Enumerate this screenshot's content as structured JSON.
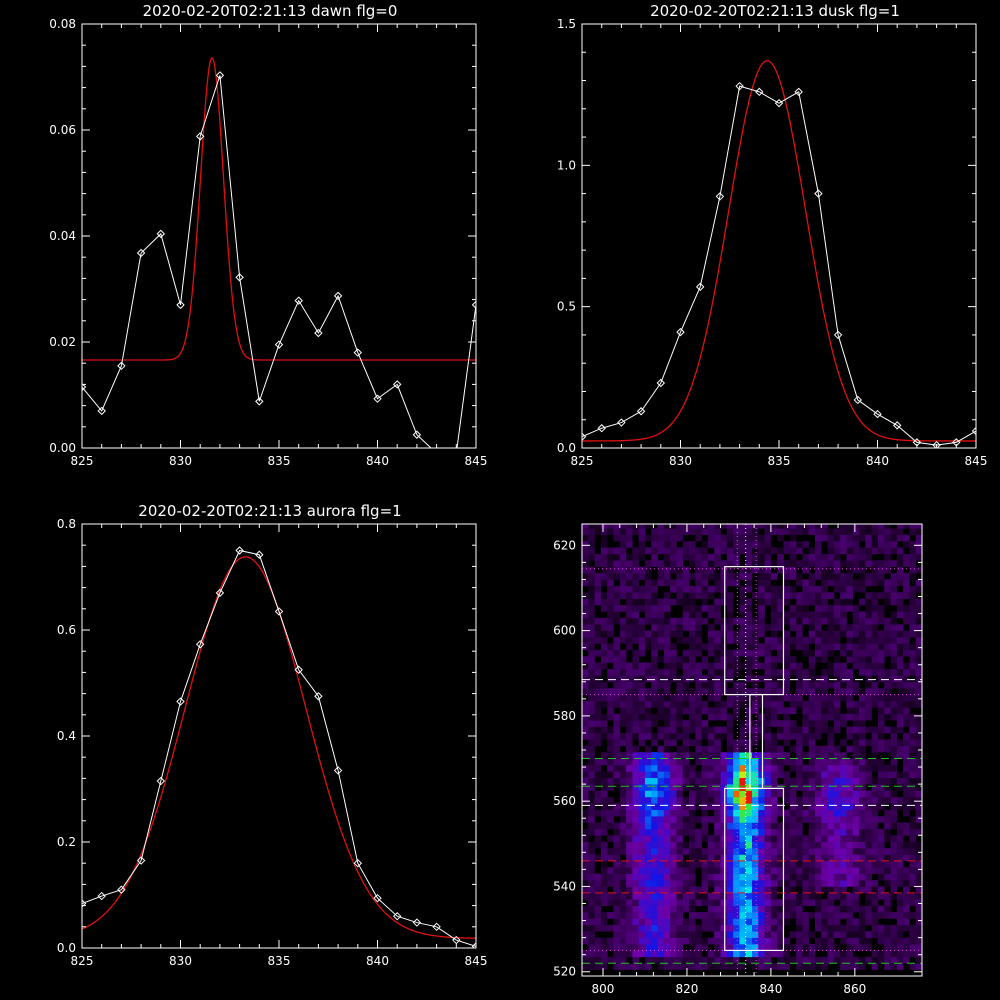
{
  "colors": {
    "background": "#000000",
    "axes": "#ffffff",
    "data_line": "#ffffff",
    "fit_line": "#e01010",
    "box": "#ffffff",
    "dashed_white": "#ffffff",
    "dashed_green": "#20c020",
    "dashed_red": "#e01010",
    "dotted_magenta": "#e040e0"
  },
  "chart_data": [
    {
      "type": "line",
      "title": "2020-02-20T02:21:13 dawn flg=0",
      "xlim": [
        825,
        845
      ],
      "ylim": [
        0,
        0.08
      ],
      "xticks": [
        "825",
        "830",
        "835",
        "840",
        "845"
      ],
      "xtick_values": [
        825,
        830,
        835,
        840,
        845
      ],
      "yticks": [
        "0.00",
        "0.02",
        "0.04",
        "0.06",
        "0.08"
      ],
      "ytick_values": [
        0,
        0.02,
        0.04,
        0.06,
        0.08
      ],
      "series": [
        {
          "role": "data",
          "markers": "diamond",
          "x": [
            825,
            826,
            827,
            828,
            829,
            830,
            831,
            832,
            833,
            834,
            835,
            836,
            837,
            838,
            839,
            840,
            841,
            842,
            843,
            844,
            845
          ],
          "y": [
            0.0115,
            0.007,
            0.0155,
            0.0368,
            0.0404,
            0.027,
            0.0588,
            0.0703,
            0.0322,
            0.0088,
            0.0195,
            0.0278,
            0.0217,
            0.0287,
            0.018,
            0.0093,
            0.012,
            0.0025,
            -0.001,
            -0.001,
            0.027
          ]
        },
        {
          "role": "fit",
          "model": "gaussian",
          "center": 831.6,
          "sigma": 0.58,
          "amplitude": 0.057,
          "baseline": 0.0166
        }
      ]
    },
    {
      "type": "line",
      "title": "2020-02-20T02:21:13 dusk flg=1",
      "xlim": [
        825,
        845
      ],
      "ylim": [
        0,
        1.5
      ],
      "xticks": [
        "825",
        "830",
        "835",
        "840",
        "845"
      ],
      "xtick_values": [
        825,
        830,
        835,
        840,
        845
      ],
      "yticks": [
        "0.0",
        "0.5",
        "1.0",
        "1.5"
      ],
      "ytick_values": [
        0,
        0.5,
        1.0,
        1.5
      ],
      "series": [
        {
          "role": "data",
          "markers": "diamond",
          "x": [
            825,
            826,
            827,
            828,
            829,
            830,
            831,
            832,
            833,
            834,
            835,
            836,
            837,
            838,
            839,
            840,
            841,
            842,
            843,
            844,
            845
          ],
          "y": [
            0.04,
            0.07,
            0.09,
            0.13,
            0.23,
            0.41,
            0.57,
            0.89,
            1.28,
            1.26,
            1.22,
            1.26,
            0.9,
            0.4,
            0.17,
            0.12,
            0.08,
            0.02,
            0.01,
            0.02,
            0.06
          ]
        },
        {
          "role": "fit",
          "model": "gaussian",
          "center": 834.4,
          "sigma": 1.95,
          "amplitude": 1.345,
          "baseline": 0.025
        }
      ]
    },
    {
      "type": "line",
      "title": "2020-02-20T02:21:13 aurora flg=1",
      "xlim": [
        825,
        845
      ],
      "ylim": [
        0,
        0.8
      ],
      "xticks": [
        "825",
        "830",
        "835",
        "840",
        "845"
      ],
      "xtick_values": [
        825,
        830,
        835,
        840,
        845
      ],
      "yticks": [
        "0.0",
        "0.2",
        "0.4",
        "0.6",
        "0.8"
      ],
      "ytick_values": [
        0,
        0.2,
        0.4,
        0.6,
        0.8
      ],
      "series": [
        {
          "role": "data",
          "markers": "diamond",
          "x": [
            825,
            826,
            827,
            828,
            829,
            830,
            831,
            832,
            833,
            834,
            835,
            836,
            837,
            838,
            839,
            840,
            841,
            842,
            843,
            844,
            845
          ],
          "y": [
            0.084,
            0.098,
            0.11,
            0.165,
            0.315,
            0.465,
            0.573,
            0.67,
            0.75,
            0.742,
            0.635,
            0.525,
            0.475,
            0.335,
            0.16,
            0.094,
            0.06,
            0.048,
            0.04,
            0.015,
            0.003
          ]
        },
        {
          "role": "fit",
          "model": "gaussian",
          "center": 833.3,
          "sigma": 3.05,
          "amplitude": 0.72,
          "baseline": 0.018
        }
      ]
    },
    {
      "type": "heatmap",
      "title": "",
      "xlim": [
        795,
        876
      ],
      "ylim": [
        519,
        625
      ],
      "xticks": [
        "800",
        "820",
        "840",
        "860"
      ],
      "xtick_values": [
        800,
        820,
        840,
        860
      ],
      "yticks": [
        "520",
        "540",
        "560",
        "580",
        "600",
        "620"
      ],
      "ytick_values": [
        520,
        540,
        560,
        580,
        600,
        620
      ],
      "intensity_sources": [
        {
          "x": 812,
          "y_range": [
            524,
            571
          ],
          "peak_y": 563,
          "width": 3.2,
          "strength": 0.55
        },
        {
          "x": 834,
          "y_range": [
            524,
            571
          ],
          "peak_y": 563,
          "width": 3.0,
          "strength": 1.0
        },
        {
          "x": 856,
          "y_range": [
            540,
            570
          ],
          "peak_y": 560,
          "width": 3.5,
          "strength": 0.28
        }
      ],
      "boxes": [
        {
          "x": [
            829,
            843
          ],
          "y": [
            585,
            615
          ]
        },
        {
          "x": [
            835,
            838
          ],
          "y": [
            563,
            585
          ]
        },
        {
          "x": [
            829,
            843
          ],
          "y": [
            525,
            563
          ]
        }
      ],
      "hlines": [
        {
          "y": 614.5,
          "style": "dotted",
          "color": "dotted_magenta"
        },
        {
          "y": 588.5,
          "style": "dashed",
          "color": "dashed_white"
        },
        {
          "y": 585,
          "style": "dotted",
          "color": "dotted_magenta"
        },
        {
          "y": 570,
          "style": "dashed",
          "color": "dashed_green"
        },
        {
          "y": 563.5,
          "style": "dashed",
          "color": "dashed_green"
        },
        {
          "y": 559,
          "style": "dashed",
          "color": "dashed_white"
        },
        {
          "y": 546,
          "style": "dashed",
          "color": "dashed_red"
        },
        {
          "y": 538.5,
          "style": "dashed",
          "color": "dashed_red"
        },
        {
          "y": 525,
          "style": "dotted",
          "color": "dotted_magenta"
        },
        {
          "y": 522,
          "style": "dashed",
          "color": "dashed_green"
        }
      ],
      "vlines": [
        {
          "x": 832,
          "style": "dotted",
          "color": "dotted_magenta"
        },
        {
          "x": 834,
          "style": "dotted",
          "color": "dashed_white"
        },
        {
          "x": 836.5,
          "style": "dotted",
          "color": "dotted_magenta"
        }
      ]
    }
  ]
}
